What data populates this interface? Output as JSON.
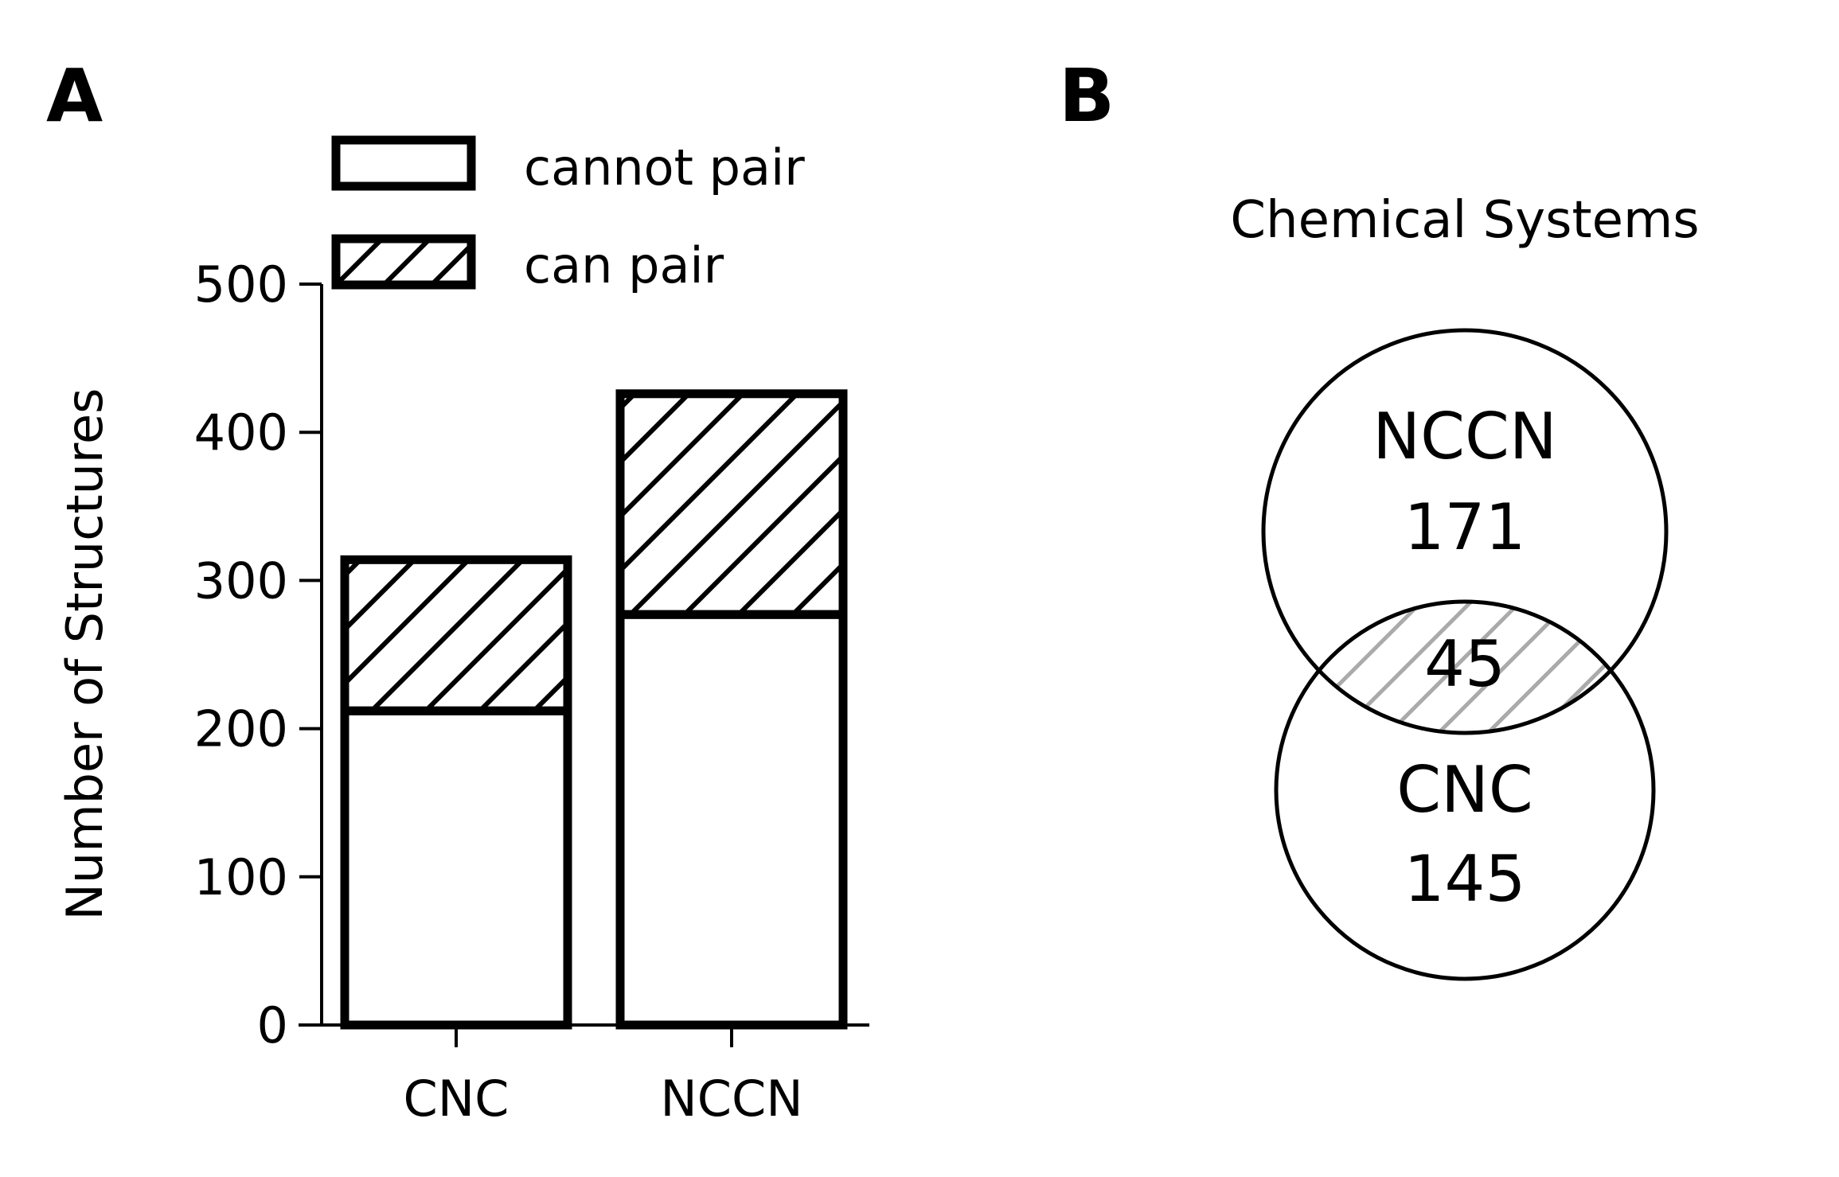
{
  "panel_labels": {
    "a": "A",
    "b": "B"
  },
  "chart_data": [
    {
      "type": "bar",
      "stacked": true,
      "categories": [
        "CNC",
        "NCCN"
      ],
      "series": [
        {
          "name": "cannot pair",
          "values": [
            212,
            277
          ],
          "hatch": "none"
        },
        {
          "name": "can pair",
          "values": [
            102,
            149
          ],
          "hatch": "diagonal"
        }
      ],
      "title": "",
      "xlabel": "",
      "ylabel": "Number of Structures",
      "ylim": [
        0,
        500
      ],
      "yticks": [
        "0",
        "100",
        "200",
        "300",
        "400",
        "500"
      ],
      "grid": false,
      "legend": "top-left",
      "colors": {
        "bar_fill": "#ffffff",
        "bar_edge": "#000000"
      }
    },
    {
      "type": "venn",
      "title": "Chemical Systems",
      "sets": [
        {
          "name": "NCCN",
          "only": "171"
        },
        {
          "name": "CNC",
          "only": "145"
        }
      ],
      "overlap": "45",
      "colors": {
        "overlap_hatch": "#aaaaaa",
        "edge": "#000000"
      }
    }
  ]
}
